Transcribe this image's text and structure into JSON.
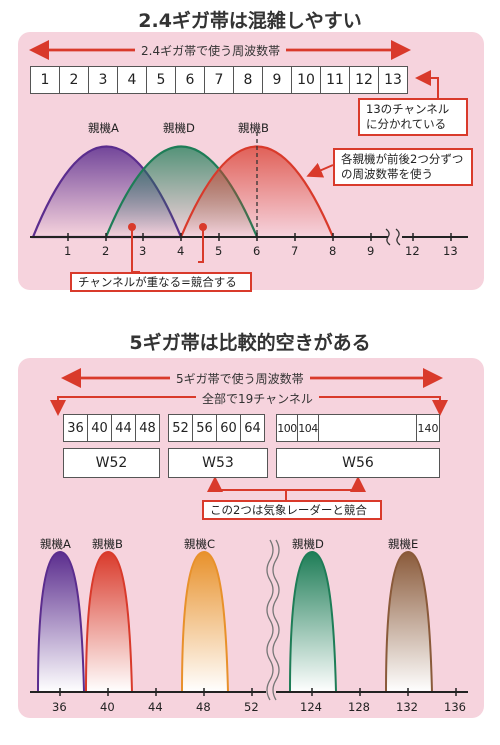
{
  "top": {
    "title": "2.4ギガ帯は混雑しやすい",
    "band_label": "2.4ギガ帯で使う周波数帯",
    "channels": [
      "1",
      "2",
      "3",
      "4",
      "5",
      "6",
      "7",
      "8",
      "9",
      "10",
      "11",
      "12",
      "13"
    ],
    "callout_13ch": "13のチャンネルに分かれている",
    "callout_width": "各親機が前後2つ分ずつの周波数帯を使う",
    "callout_overlap": "チャンネルが重なる=競合する",
    "parents": [
      {
        "label": "親機A",
        "channel": 3,
        "color": "#5b2d8e"
      },
      {
        "label": "親機D",
        "channel": 4,
        "color": "#1e7d57"
      },
      {
        "label": "親機B",
        "channel": 6,
        "color": "#d93a2b"
      }
    ],
    "axis_ticks": [
      "1",
      "2",
      "3",
      "4",
      "5",
      "6",
      "7",
      "8",
      "9",
      "12",
      "13"
    ]
  },
  "bottom": {
    "title": "5ギガ帯は比較的空きがある",
    "band_label": "5ギガ帯で使う周波数帯",
    "total_label": "全部で19チャンネル",
    "group1": [
      "36",
      "40",
      "44",
      "48"
    ],
    "group2": [
      "52",
      "56",
      "60",
      "64"
    ],
    "group3_start": [
      "100",
      "104"
    ],
    "group3_end": "140",
    "w52": "W52",
    "w53": "W53",
    "w56": "W56",
    "callout_radar": "この2つは気象レーダーと競合",
    "parents": [
      {
        "label": "親機A",
        "channel": 36,
        "color": "#5b2d8e"
      },
      {
        "label": "親機B",
        "channel": 40,
        "color": "#d93a2b"
      },
      {
        "label": "親機C",
        "channel": 48,
        "color": "#e8912b"
      },
      {
        "label": "親機D",
        "channel": 124,
        "color": "#1e7d57"
      },
      {
        "label": "親機E",
        "channel": 132,
        "color": "#8a5a3a"
      }
    ],
    "axis_ticks": [
      "36",
      "40",
      "44",
      "48",
      "52",
      "124",
      "128",
      "132",
      "136"
    ]
  },
  "accent": "#d93a2b"
}
